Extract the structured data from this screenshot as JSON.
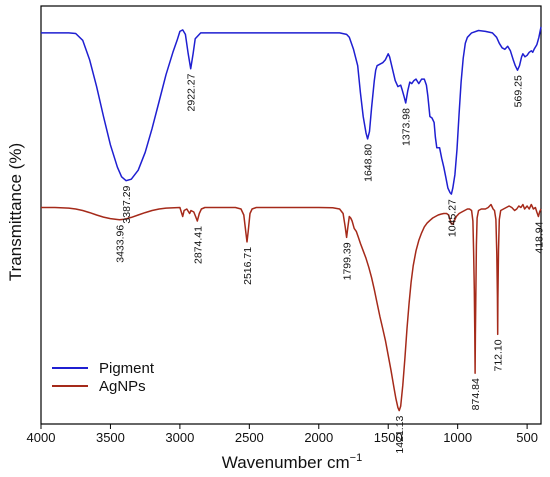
{
  "chart_data": {
    "type": "line",
    "title": "",
    "xlabel": "Wavenumber cm",
    "xlabel_sup": "−1",
    "ylabel": "Transmittance (%)",
    "xlim": [
      4000,
      400
    ],
    "x_reversed": true,
    "x_ticks": [
      4000,
      3500,
      3000,
      2500,
      2000,
      1500,
      1000,
      500
    ],
    "y_ticks_shown": false,
    "legend_position": "bottom-left",
    "series": [
      {
        "name": "Pigment",
        "color": "#1f1fd1",
        "points": [
          [
            4000,
            91.0
          ],
          [
            3900,
            91.0
          ],
          [
            3800,
            91.0
          ],
          [
            3750,
            90.8
          ],
          [
            3700,
            88.5
          ],
          [
            3650,
            82.0
          ],
          [
            3600,
            73.0
          ],
          [
            3550,
            63.0
          ],
          [
            3500,
            53.5
          ],
          [
            3450,
            46.0
          ],
          [
            3420,
            42.8
          ],
          [
            3387,
            41.5
          ],
          [
            3350,
            42.0
          ],
          [
            3300,
            45.0
          ],
          [
            3250,
            51.0
          ],
          [
            3200,
            59.0
          ],
          [
            3150,
            68.0
          ],
          [
            3100,
            77.0
          ],
          [
            3050,
            84.5
          ],
          [
            3020,
            88.5
          ],
          [
            3000,
            91.5
          ],
          [
            2980,
            92.0
          ],
          [
            2960,
            90.5
          ],
          [
            2940,
            84.0
          ],
          [
            2922,
            79.0
          ],
          [
            2905,
            84.0
          ],
          [
            2890,
            89.0
          ],
          [
            2870,
            90.0
          ],
          [
            2850,
            91.0
          ],
          [
            2800,
            91.0
          ],
          [
            2500,
            91.0
          ],
          [
            2000,
            91.0
          ],
          [
            1850,
            91.0
          ],
          [
            1800,
            90.5
          ],
          [
            1780,
            89.5
          ],
          [
            1750,
            85.5
          ],
          [
            1720,
            80.0
          ],
          [
            1700,
            71.0
          ],
          [
            1680,
            63.0
          ],
          [
            1660,
            57.5
          ],
          [
            1648.8,
            55.5
          ],
          [
            1635,
            58.0
          ],
          [
            1620,
            66.0
          ],
          [
            1600,
            75.0
          ],
          [
            1590,
            78.5
          ],
          [
            1580,
            80.0
          ],
          [
            1560,
            80.5
          ],
          [
            1540,
            81.0
          ],
          [
            1520,
            82.0
          ],
          [
            1500,
            84.0
          ],
          [
            1490,
            83.0
          ],
          [
            1470,
            79.0
          ],
          [
            1450,
            75.0
          ],
          [
            1430,
            73.0
          ],
          [
            1410,
            73.5
          ],
          [
            1400,
            72.0
          ],
          [
            1385,
            69.5
          ],
          [
            1373.98,
            67.5
          ],
          [
            1360,
            71.5
          ],
          [
            1345,
            74.5
          ],
          [
            1330,
            74.0
          ],
          [
            1315,
            75.0
          ],
          [
            1300,
            75.5
          ],
          [
            1280,
            74.0
          ],
          [
            1260,
            75.5
          ],
          [
            1240,
            75.5
          ],
          [
            1225,
            73.5
          ],
          [
            1215,
            70.0
          ],
          [
            1200,
            63.0
          ],
          [
            1185,
            62.5
          ],
          [
            1170,
            61.0
          ],
          [
            1160,
            56.0
          ],
          [
            1150,
            52.5
          ],
          [
            1130,
            52.5
          ],
          [
            1115,
            49.0
          ],
          [
            1100,
            46.0
          ],
          [
            1085,
            42.5
          ],
          [
            1070,
            39.0
          ],
          [
            1055,
            37.5
          ],
          [
            1045.27,
            37.0
          ],
          [
            1035,
            39.0
          ],
          [
            1020,
            43.5
          ],
          [
            1005,
            52.0
          ],
          [
            990,
            64.0
          ],
          [
            975,
            74.5
          ],
          [
            960,
            82.5
          ],
          [
            945,
            87.5
          ],
          [
            930,
            89.5
          ],
          [
            900,
            91.0
          ],
          [
            850,
            91.8
          ],
          [
            800,
            91.5
          ],
          [
            750,
            91.0
          ],
          [
            720,
            89.5
          ],
          [
            700,
            87.5
          ],
          [
            680,
            86.0
          ],
          [
            660,
            85.5
          ],
          [
            640,
            86.5
          ],
          [
            620,
            85.0
          ],
          [
            600,
            82.0
          ],
          [
            585,
            80.0
          ],
          [
            569.25,
            78.5
          ],
          [
            555,
            80.0
          ],
          [
            540,
            83.0
          ],
          [
            530,
            84.0
          ],
          [
            515,
            83.0
          ],
          [
            500,
            83.5
          ],
          [
            485,
            84.5
          ],
          [
            470,
            85.0
          ],
          [
            460,
            84.5
          ],
          [
            450,
            85.5
          ],
          [
            430,
            87.0
          ],
          [
            415,
            89.5
          ],
          [
            400,
            93.0
          ]
        ]
      },
      {
        "name": "AgNPs",
        "color": "#a52a1a",
        "points": [
          [
            4000,
            32.5
          ],
          [
            3900,
            32.5
          ],
          [
            3800,
            32.3
          ],
          [
            3750,
            32.0
          ],
          [
            3700,
            31.5
          ],
          [
            3650,
            30.8
          ],
          [
            3600,
            30.0
          ],
          [
            3550,
            29.3
          ],
          [
            3500,
            28.8
          ],
          [
            3450,
            28.5
          ],
          [
            3433.96,
            28.4
          ],
          [
            3400,
            28.6
          ],
          [
            3350,
            29.2
          ],
          [
            3300,
            30.0
          ],
          [
            3250,
            30.8
          ],
          [
            3200,
            31.5
          ],
          [
            3150,
            32.0
          ],
          [
            3100,
            32.3
          ],
          [
            3000,
            32.5
          ],
          [
            2990,
            31.0
          ],
          [
            2980,
            29.5
          ],
          [
            2970,
            31.5
          ],
          [
            2950,
            32.0
          ],
          [
            2930,
            30.5
          ],
          [
            2920,
            31.5
          ],
          [
            2900,
            31.0
          ],
          [
            2887,
            29.5
          ],
          [
            2874.41,
            28.0
          ],
          [
            2860,
            30.5
          ],
          [
            2845,
            32.0
          ],
          [
            2820,
            32.5
          ],
          [
            2700,
            32.5
          ],
          [
            2600,
            32.5
          ],
          [
            2560,
            32.0
          ],
          [
            2540,
            30.0
          ],
          [
            2525,
            24.0
          ],
          [
            2516.71,
            21.0
          ],
          [
            2508,
            24.5
          ],
          [
            2495,
            30.5
          ],
          [
            2480,
            32.0
          ],
          [
            2450,
            32.5
          ],
          [
            2200,
            32.5
          ],
          [
            2000,
            32.5
          ],
          [
            1900,
            32.4
          ],
          [
            1850,
            32.0
          ],
          [
            1825,
            30.5
          ],
          [
            1810,
            26.0
          ],
          [
            1799.39,
            22.5
          ],
          [
            1790,
            26.0
          ],
          [
            1780,
            29.5
          ],
          [
            1770,
            29.0
          ],
          [
            1760,
            28.0
          ],
          [
            1745,
            25.5
          ],
          [
            1730,
            24.5
          ],
          [
            1715,
            22.5
          ],
          [
            1700,
            20.5
          ],
          [
            1680,
            18.0
          ],
          [
            1660,
            15.5
          ],
          [
            1640,
            12.5
          ],
          [
            1620,
            9.0
          ],
          [
            1600,
            5.0
          ],
          [
            1580,
            0.5
          ],
          [
            1560,
            -4.0
          ],
          [
            1540,
            -8.0
          ],
          [
            1520,
            -12.0
          ],
          [
            1500,
            -17.0
          ],
          [
            1480,
            -22.0
          ],
          [
            1460,
            -27.5
          ],
          [
            1445,
            -31.5
          ],
          [
            1430,
            -34.5
          ],
          [
            1421.13,
            -35.5
          ],
          [
            1410,
            -34.0
          ],
          [
            1395,
            -27.0
          ],
          [
            1380,
            -18.0
          ],
          [
            1365,
            -8.0
          ],
          [
            1350,
            0.5
          ],
          [
            1335,
            7.5
          ],
          [
            1320,
            13.0
          ],
          [
            1300,
            18.0
          ],
          [
            1280,
            21.5
          ],
          [
            1260,
            24.0
          ],
          [
            1240,
            26.0
          ],
          [
            1220,
            27.3
          ],
          [
            1200,
            28.2
          ],
          [
            1180,
            29.0
          ],
          [
            1160,
            29.5
          ],
          [
            1140,
            30.0
          ],
          [
            1120,
            30.3
          ],
          [
            1100,
            30.5
          ],
          [
            1080,
            30.5
          ],
          [
            1065,
            30.0
          ],
          [
            1055,
            28.5
          ],
          [
            1045,
            27.0
          ],
          [
            1035,
            27.0
          ],
          [
            1025,
            28.0
          ],
          [
            1010,
            29.5
          ],
          [
            990,
            30.5
          ],
          [
            970,
            31.0
          ],
          [
            950,
            31.5
          ],
          [
            930,
            32.0
          ],
          [
            915,
            32.0
          ],
          [
            900,
            31.5
          ],
          [
            890,
            28.0
          ],
          [
            885,
            18.0
          ],
          [
            880,
            5.0
          ],
          [
            877,
            -10.0
          ],
          [
            874.84,
            -23.0
          ],
          [
            872,
            -10.0
          ],
          [
            869,
            5.0
          ],
          [
            865,
            20.0
          ],
          [
            860,
            29.0
          ],
          [
            850,
            31.5
          ],
          [
            830,
            32.0
          ],
          [
            800,
            32.0
          ],
          [
            780,
            32.5
          ],
          [
            760,
            33.5
          ],
          [
            745,
            32.0
          ],
          [
            735,
            31.5
          ],
          [
            725,
            28.5
          ],
          [
            718,
            17.0
          ],
          [
            714,
            3.0
          ],
          [
            712.1,
            -10.0
          ],
          [
            710,
            2.0
          ],
          [
            706,
            18.0
          ],
          [
            700,
            28.5
          ],
          [
            690,
            31.5
          ],
          [
            670,
            32.0
          ],
          [
            650,
            32.5
          ],
          [
            630,
            33.0
          ],
          [
            610,
            32.5
          ],
          [
            590,
            31.5
          ],
          [
            575,
            32.0
          ],
          [
            560,
            33.0
          ],
          [
            545,
            32.5
          ],
          [
            530,
            33.5
          ],
          [
            518,
            32.0
          ],
          [
            500,
            33.0
          ],
          [
            485,
            32.0
          ],
          [
            470,
            33.5
          ],
          [
            455,
            32.0
          ],
          [
            440,
            32.5
          ],
          [
            430,
            31.0
          ],
          [
            418.94,
            29.5
          ],
          [
            410,
            31.0
          ],
          [
            400,
            32.0
          ]
        ]
      }
    ],
    "annotations": [
      {
        "label": "3387.29",
        "x": 3387.29,
        "series": 0
      },
      {
        "label": "2922.27",
        "x": 2922.27,
        "series": 0
      },
      {
        "label": "1648.80",
        "x": 1648.8,
        "series": 0
      },
      {
        "label": "1373.98",
        "x": 1373.98,
        "series": 0
      },
      {
        "label": "1045.27",
        "x": 1045.27,
        "series": 0
      },
      {
        "label": "569.25",
        "x": 569.25,
        "series": 0
      },
      {
        "label": "3433.96",
        "x": 3433.96,
        "series": 1
      },
      {
        "label": "2874.41",
        "x": 2874.41,
        "series": 1
      },
      {
        "label": "2516.71",
        "x": 2516.71,
        "series": 1
      },
      {
        "label": "1799.39",
        "x": 1799.39,
        "series": 1
      },
      {
        "label": "1421.13",
        "x": 1421.13,
        "series": 1
      },
      {
        "label": "874.84",
        "x": 874.84,
        "series": 1
      },
      {
        "label": "712.10",
        "x": 712.1,
        "series": 1
      },
      {
        "label": "418.94",
        "x": 418.94,
        "series": 1
      }
    ]
  }
}
